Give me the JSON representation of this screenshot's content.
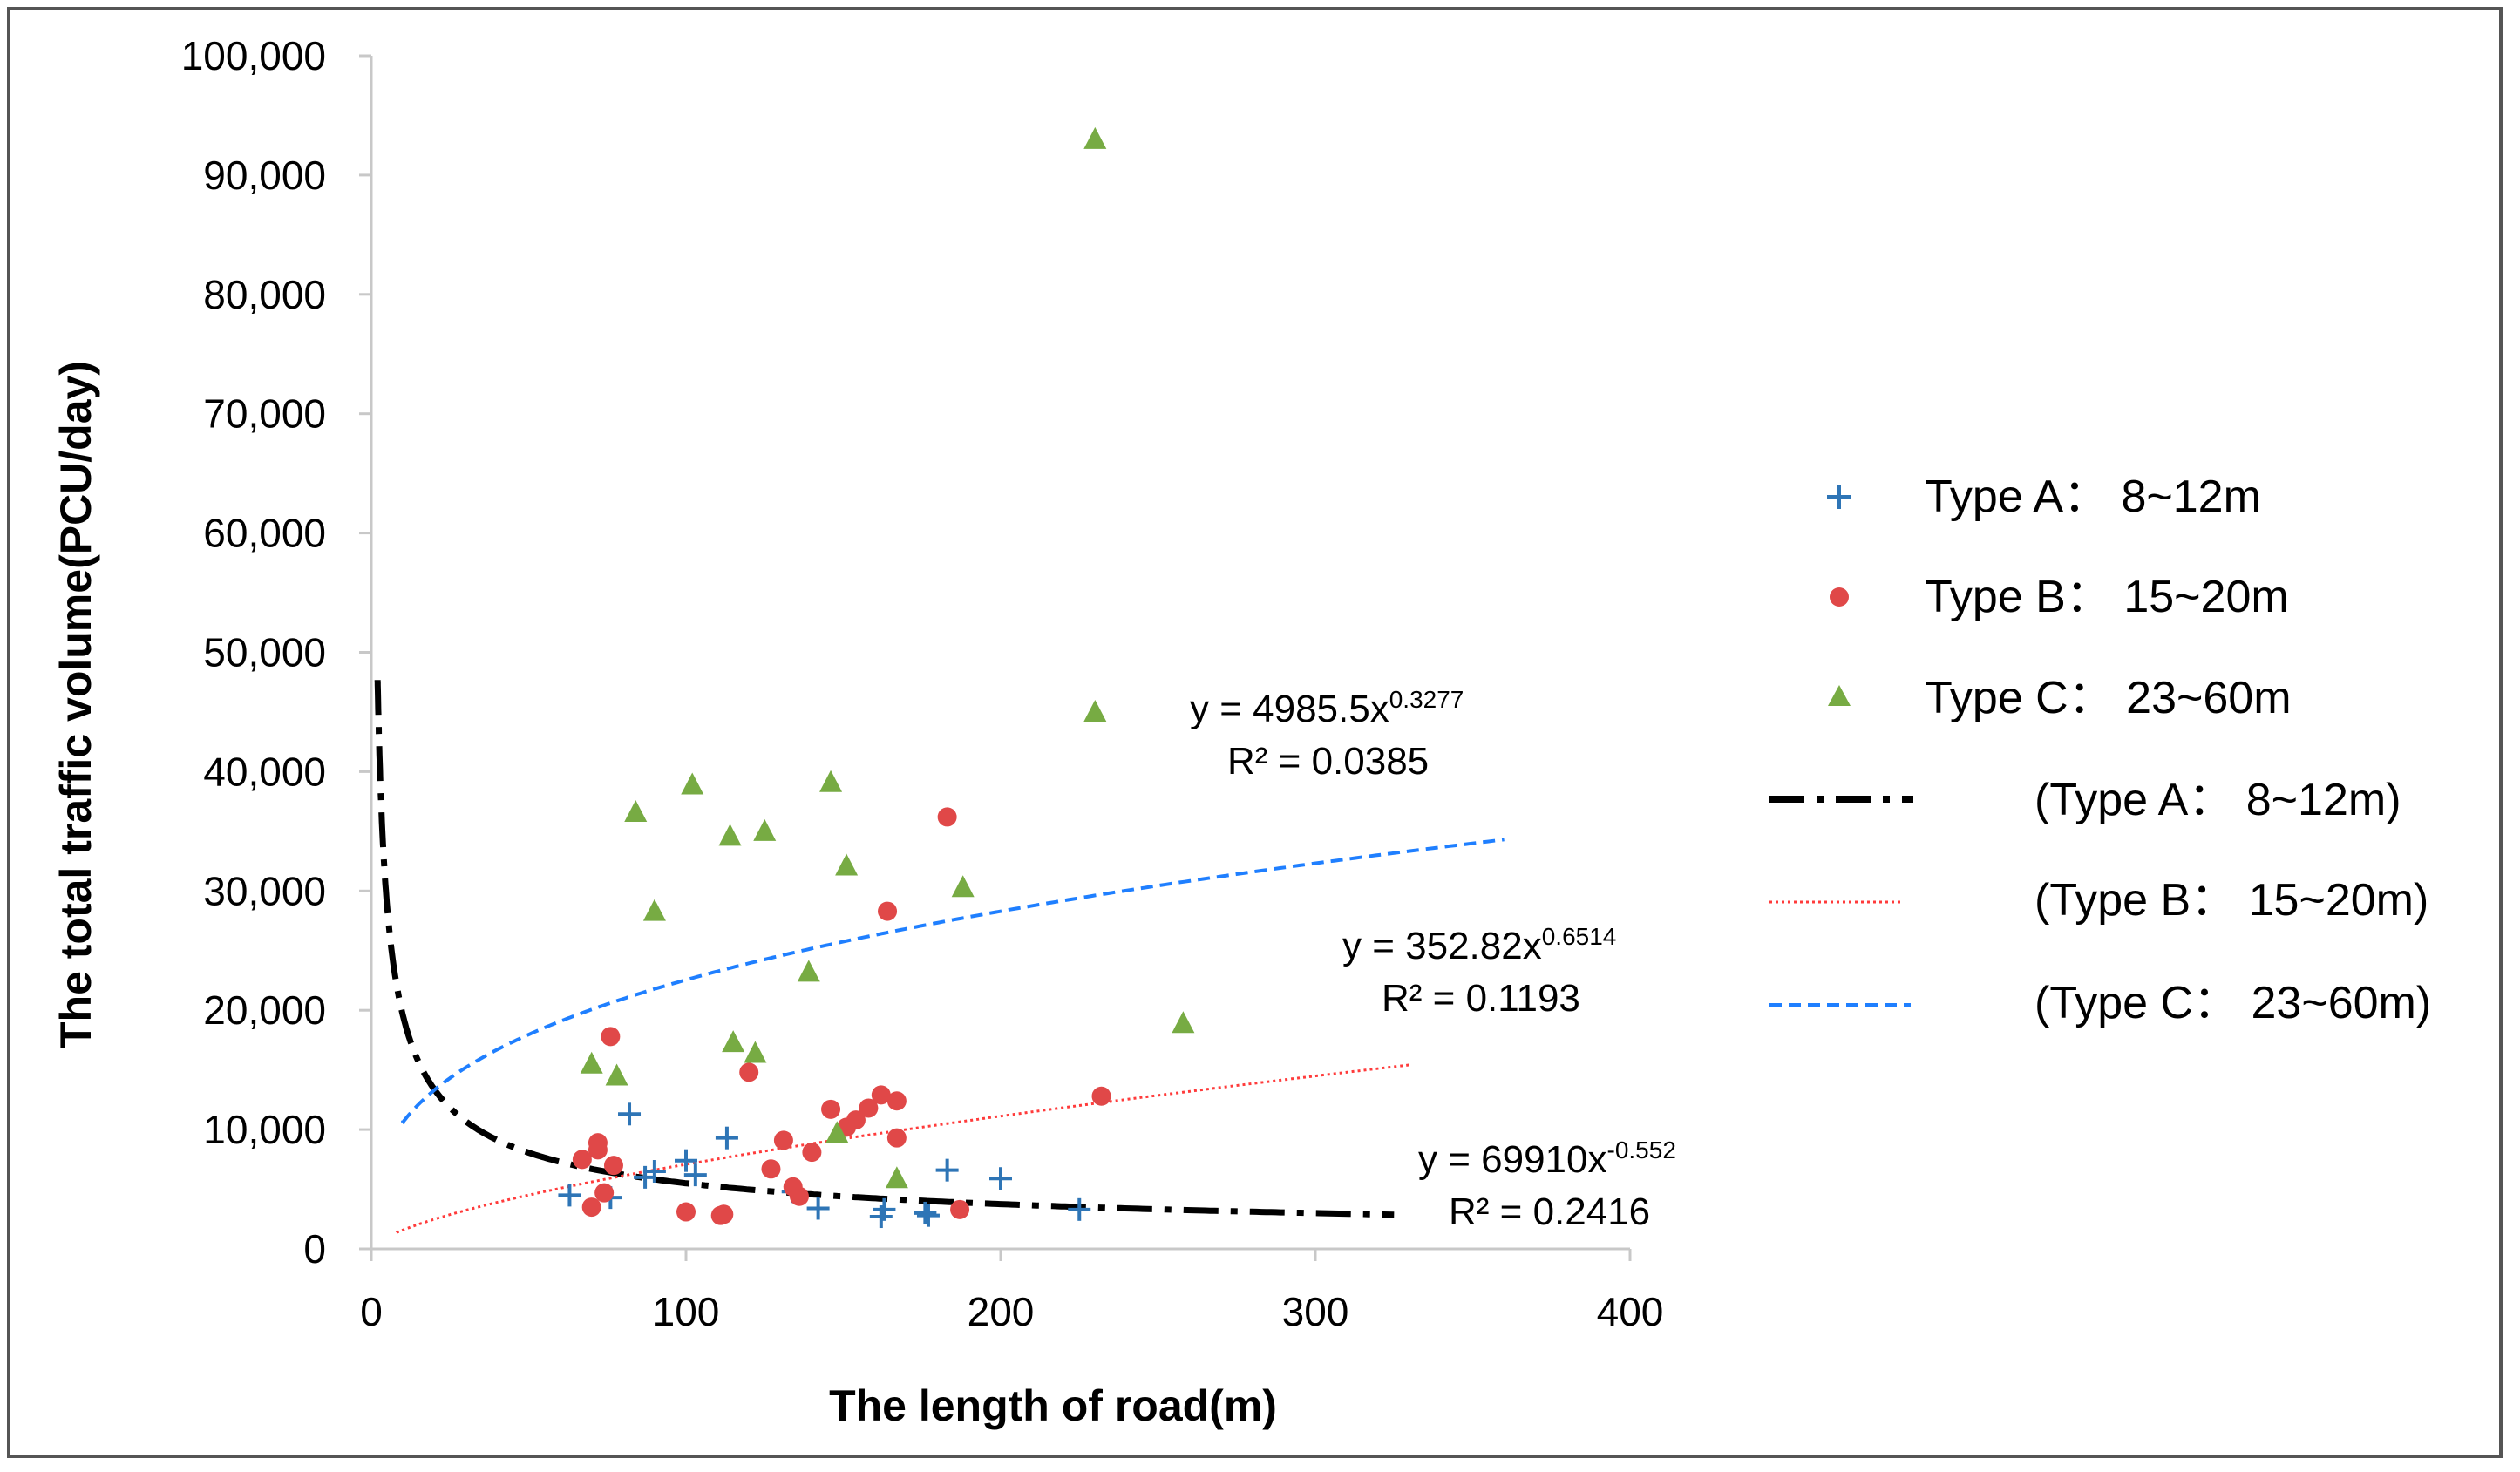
{
  "chart_data": {
    "type": "scatter",
    "title": "",
    "xlabel": "The length of road(m)",
    "ylabel": "The total  traffic volume(PCU/day)",
    "xlim": [
      0,
      400
    ],
    "ylim": [
      0,
      100000
    ],
    "x_ticks": [
      0,
      100,
      200,
      300,
      400
    ],
    "x_tick_labels": [
      "0",
      "100",
      "200",
      "300",
      "400"
    ],
    "y_ticks": [
      0,
      10000,
      20000,
      30000,
      40000,
      50000,
      60000,
      70000,
      80000,
      90000,
      100000
    ],
    "y_tick_labels": [
      "0",
      "10,000",
      "20,000",
      "30,000",
      "40,000",
      "50,000",
      "60,000",
      "70,000",
      "80,000",
      "90,000",
      "100,000"
    ],
    "grid": false,
    "legend_position": "right",
    "series": [
      {
        "name": "Type A： 8~12m",
        "marker": "plus",
        "color": "#2E75B6",
        "points": [
          [
            63,
            4500
          ],
          [
            76,
            4300
          ],
          [
            82,
            11300
          ],
          [
            87,
            6000
          ],
          [
            90,
            6500
          ],
          [
            100,
            7400
          ],
          [
            103,
            6200
          ],
          [
            113,
            9300
          ],
          [
            134,
            4800
          ],
          [
            142,
            3400
          ],
          [
            162,
            2700
          ],
          [
            163,
            3300
          ],
          [
            176,
            3000
          ],
          [
            177,
            2800
          ],
          [
            183,
            6600
          ],
          [
            200,
            5900
          ],
          [
            225,
            3300
          ]
        ]
      },
      {
        "name": "Type B： 15~20m",
        "marker": "circle",
        "color": "#E04848",
        "points": [
          [
            67,
            7500
          ],
          [
            70,
            3500
          ],
          [
            72,
            8900
          ],
          [
            72,
            8300
          ],
          [
            74,
            4700
          ],
          [
            76,
            17800
          ],
          [
            77,
            7000
          ],
          [
            100,
            3100
          ],
          [
            111,
            2800
          ],
          [
            112,
            2900
          ],
          [
            120,
            14800
          ],
          [
            127,
            6700
          ],
          [
            131,
            9100
          ],
          [
            134,
            5200
          ],
          [
            136,
            4400
          ],
          [
            140,
            8100
          ],
          [
            146,
            11700
          ],
          [
            151,
            10200
          ],
          [
            154,
            10800
          ],
          [
            158,
            11800
          ],
          [
            162,
            12900
          ],
          [
            164,
            28300
          ],
          [
            167,
            9300
          ],
          [
            167,
            12400
          ],
          [
            183,
            36200
          ],
          [
            187,
            3300
          ],
          [
            232,
            12800
          ]
        ]
      },
      {
        "name": "Type C： 23~60m",
        "marker": "triangle",
        "color": "#77AB43",
        "points": [
          [
            70,
            15500
          ],
          [
            78,
            14500
          ],
          [
            84,
            36600
          ],
          [
            90,
            28300
          ],
          [
            102,
            38900
          ],
          [
            114,
            34600
          ],
          [
            115,
            17300
          ],
          [
            122,
            16400
          ],
          [
            125,
            35000
          ],
          [
            139,
            23200
          ],
          [
            146,
            39100
          ],
          [
            148,
            9700
          ],
          [
            151,
            32100
          ],
          [
            167,
            5900
          ],
          [
            188,
            30300
          ],
          [
            230,
            93000
          ],
          [
            230,
            45000
          ],
          [
            258,
            18900
          ]
        ]
      }
    ],
    "trendlines": [
      {
        "name": "(Type A： 8~12m)",
        "model": "power",
        "a": 69910,
        "b": -0.552,
        "x_range": [
          2,
          325
        ],
        "style": "dash-dot",
        "color": "#000000",
        "equation_prefix": "y = 69910x",
        "equation_exponent": "-0.552",
        "r2_label": "R² = 0.2416"
      },
      {
        "name": "(Type B： 15~20m)",
        "model": "power",
        "a": 352.82,
        "b": 0.6514,
        "x_range": [
          8,
          330
        ],
        "style": "dotted",
        "color": "#FF3B3B",
        "equation_prefix": "y = 352.82x",
        "equation_exponent": "0.6514",
        "r2_label": "R² = 0.1193"
      },
      {
        "name": "(Type C： 23~60m)",
        "model": "power",
        "a": 4985.5,
        "b": 0.3277,
        "x_range": [
          10,
          360
        ],
        "style": "dashed",
        "color": "#1F7FFF",
        "equation_prefix": "y = 4985.5x",
        "equation_exponent": "0.3277",
        "r2_label": "R² = 0.0385"
      }
    ]
  }
}
